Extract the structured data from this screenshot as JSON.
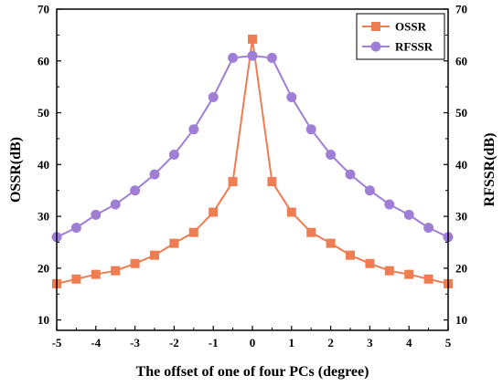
{
  "chart_data": {
    "type": "line",
    "title": "",
    "xlabel": "The offset of one of four PCs (degree)",
    "ylabel_left": "OSSR(dB)",
    "ylabel_right": "RFSSR(dB)",
    "xlim": [
      -5,
      5
    ],
    "ylim": [
      8,
      70
    ],
    "y_right_lim": [
      8,
      70
    ],
    "x_ticks": [
      -5,
      -4,
      -3,
      -2,
      -1,
      0,
      1,
      2,
      3,
      4,
      5
    ],
    "y_ticks": [
      10,
      20,
      30,
      40,
      50,
      60,
      70
    ],
    "grid": false,
    "legend_position": "top-right",
    "series": [
      {
        "name": "OSSR",
        "color": "#ee7d52",
        "marker": "square",
        "axis": "left",
        "x": [
          -5,
          -4.5,
          -4,
          -3.5,
          -3,
          -2.5,
          -2,
          -1.5,
          -1,
          -0.5,
          0,
          0.5,
          1,
          1.5,
          2,
          2.5,
          3,
          3.5,
          4,
          4.5,
          5
        ],
        "values": [
          17,
          17.9,
          18.8,
          19.5,
          20.9,
          22.5,
          24.8,
          26.9,
          30.8,
          36.7,
          64.2,
          36.7,
          30.8,
          26.9,
          24.8,
          22.5,
          20.9,
          19.5,
          18.8,
          17.9,
          17
        ]
      },
      {
        "name": "RFSSR",
        "color": "#9f7fd6",
        "marker": "circle",
        "axis": "right",
        "x": [
          -5,
          -4.5,
          -4,
          -3.5,
          -3,
          -2.5,
          -2,
          -1.5,
          -1,
          -0.5,
          0,
          0.5,
          1,
          1.5,
          2,
          2.5,
          3,
          3.5,
          4,
          4.5,
          5
        ],
        "values": [
          26,
          27.8,
          30.3,
          32.3,
          35,
          38.1,
          41.9,
          46.8,
          53,
          60.6,
          61,
          60.6,
          53,
          46.8,
          41.9,
          38.1,
          35,
          32.3,
          30.3,
          27.8,
          26
        ]
      }
    ]
  }
}
